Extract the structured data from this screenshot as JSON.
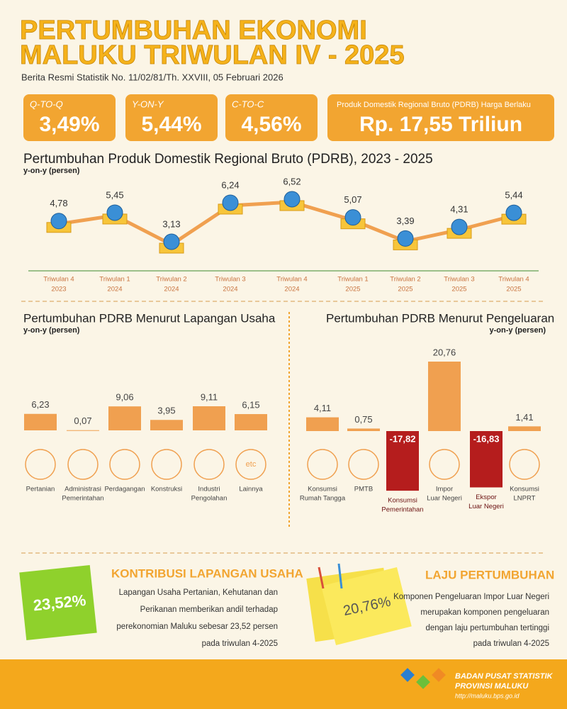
{
  "header": {
    "title_line1": "PERTUMBUHAN EKONOMI",
    "title_line2": "MALUKU TRIWULAN IV - 2025",
    "subtitle": "Berita Resmi Statistik No. 11/02/81/Th. XXVIII, 05 Februari 2026"
  },
  "kpis": [
    {
      "label": "Q-TO-Q",
      "value": "3,49%"
    },
    {
      "label": "Y-ON-Y",
      "value": "5,44%"
    },
    {
      "label": "C-TO-C",
      "value": "4,56%"
    },
    {
      "label": "Produk Domestik Regional Bruto (PDRB) Harga Berlaku",
      "value": "Rp. 17,55 Triliun"
    }
  ],
  "chart_data": [
    {
      "type": "line",
      "title": "Pertumbuhan Produk Domestik Regional Bruto (PDRB), 2023 - 2025",
      "y_label": "y-on-y (persen)",
      "categories": [
        [
          "Triwulan 4",
          "2023"
        ],
        [
          "Triwulan 1",
          "2024"
        ],
        [
          "Triwulan 2",
          "2024"
        ],
        [
          "Triwulan 3",
          "2024"
        ],
        [
          "Triwulan 4",
          "2024"
        ],
        [
          "Triwulan 1",
          "2025"
        ],
        [
          "Triwulan 2",
          "2025"
        ],
        [
          "Triwulan 3",
          "2025"
        ],
        [
          "Triwulan 4",
          "2025"
        ]
      ],
      "values": [
        4.78,
        5.45,
        3.13,
        6.24,
        6.52,
        5.07,
        3.39,
        4.31,
        5.44
      ],
      "value_labels": [
        "4,78",
        "5,45",
        "3,13",
        "6,24",
        "6,52",
        "5,07",
        "3,39",
        "4,31",
        "5,44"
      ],
      "color": "#f0a050"
    },
    {
      "type": "bar",
      "title": "Pertumbuhan  PDRB Menurut Lapangan Usaha",
      "y_label": "y-on-y (persen)",
      "categories": [
        [
          "Pertanian"
        ],
        [
          "Administrasi",
          "Pemerintahan"
        ],
        [
          "Perdagangan"
        ],
        [
          "Konstruksi"
        ],
        [
          "Industri",
          "Pengolahan"
        ],
        [
          "Lainnya"
        ]
      ],
      "values": [
        6.23,
        0.07,
        9.06,
        3.95,
        9.11,
        6.15
      ],
      "value_labels": [
        "6,23",
        "0,07",
        "9,06",
        "3,95",
        "9,11",
        "6,15"
      ],
      "color": "#f0a050",
      "icon_text": [
        "",
        "",
        "",
        "",
        "",
        "etc"
      ]
    },
    {
      "type": "bar",
      "title": "Pertumbuhan  PDRB Menurut Pengeluaran",
      "y_label": "y-on-y (persen)",
      "categories": [
        [
          "Konsumsi",
          "Rumah Tangga"
        ],
        [
          "PMTB"
        ],
        [
          "Konsumsi",
          "Pemerintahan"
        ],
        [
          "Impor",
          "Luar Negeri"
        ],
        [
          "Ekspor",
          "Luar Negeri"
        ],
        [
          "Konsumsi",
          "LNPRT"
        ]
      ],
      "values": [
        4.11,
        0.75,
        -17.82,
        20.76,
        -16.83,
        1.41
      ],
      "value_labels": [
        "4,11",
        "0,75",
        "-17,82",
        "20,76",
        "-16,83",
        "1,41"
      ],
      "color": "#f0a050",
      "negative_color": "#b51d1d"
    }
  ],
  "contribution": {
    "title": "KONTRIBUSI LAPANGAN USAHA",
    "value": "23,52%",
    "text": [
      "Lapangan Usaha Pertanian, Kehutanan dan",
      "Perikanan memberikan andil terhadap",
      "perekonomian Maluku sebesar 23,52 persen",
      "pada triwulan 4-2025"
    ]
  },
  "growth": {
    "title": "LAJU PERTUMBUHAN",
    "value": "20,76%",
    "text": [
      "Komponen Pengeluaran Impor Luar Negeri",
      "merupakan komponen pengeluaran",
      "dengan laju pertumbuhan tertinggi",
      "pada triwulan 4-2025"
    ]
  },
  "footer": {
    "org_line1": "BADAN PUSAT STATISTIK",
    "org_line2": "PROVINSI MALUKU",
    "url": "http://maluku.bps.go.id"
  }
}
